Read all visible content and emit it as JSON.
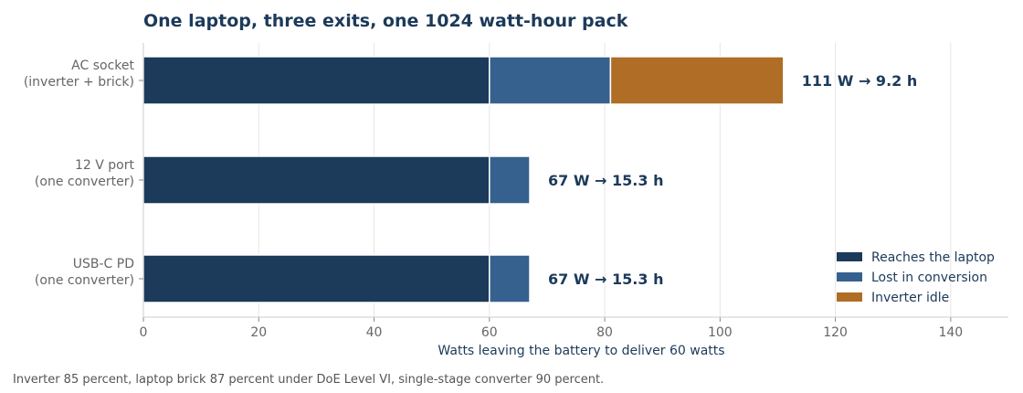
{
  "chart_data": {
    "type": "bar",
    "orientation": "horizontal",
    "stacked": true,
    "title": "One laptop, three exits, one 1024 watt-hour pack",
    "xlabel": "Watts leaving the battery to deliver 60 watts",
    "ylabel": "",
    "xlim": [
      0,
      150
    ],
    "xticks": [
      0,
      20,
      40,
      60,
      80,
      100,
      120,
      140
    ],
    "grid": "x",
    "legend_position": "bottom-right",
    "categories": [
      [
        "AC socket",
        "(inverter + brick)"
      ],
      [
        "12 V port",
        "(one converter)"
      ],
      [
        "USB-C PD",
        "(one converter)"
      ]
    ],
    "series": [
      {
        "name": "Reaches the laptop",
        "color": "#1c3a5a",
        "values": [
          60,
          60,
          60
        ]
      },
      {
        "name": "Lost in conversion",
        "color": "#36618e",
        "values": [
          21,
          7,
          7
        ]
      },
      {
        "name": "Inverter idle",
        "color": "#b06d26",
        "values": [
          30,
          0,
          0
        ]
      }
    ],
    "bar_labels": [
      "111 W  →  9.2 h",
      "67 W  →  15.3 h",
      "67 W  →  15.3 h"
    ],
    "footnote": "Inverter 85 percent, laptop brick 87 percent under DoE Level VI, single-stage converter 90 percent."
  }
}
